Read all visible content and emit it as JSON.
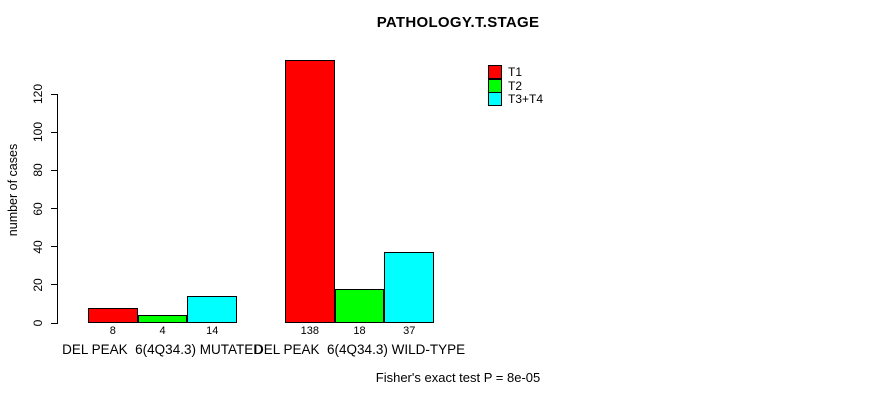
{
  "chart_data": {
    "type": "bar",
    "title": "PATHOLOGY.T.STAGE",
    "ylabel": "number of cases",
    "xlabel": "",
    "categories": [
      "DEL PEAK  6(4Q34.3) MUTATED",
      "DEL PEAK  6(4Q34.3) WILD-TYPE"
    ],
    "series": [
      {
        "name": "T1",
        "color": "#ff0000",
        "values": [
          8,
          138
        ]
      },
      {
        "name": "T2",
        "color": "#00ff00",
        "values": [
          4,
          18
        ]
      },
      {
        "name": "T3+T4",
        "color": "#00ffff",
        "values": [
          14,
          37
        ]
      }
    ],
    "bar_value_labels": [
      [
        8,
        4,
        14
      ],
      [
        138,
        18,
        37
      ]
    ],
    "yticks": [
      0,
      20,
      40,
      60,
      80,
      100,
      120
    ],
    "ylim": [
      0,
      138
    ],
    "grid": false,
    "legend_position": "top-right-inside"
  },
  "annotation": "Fisher's exact test P = 8e-05"
}
